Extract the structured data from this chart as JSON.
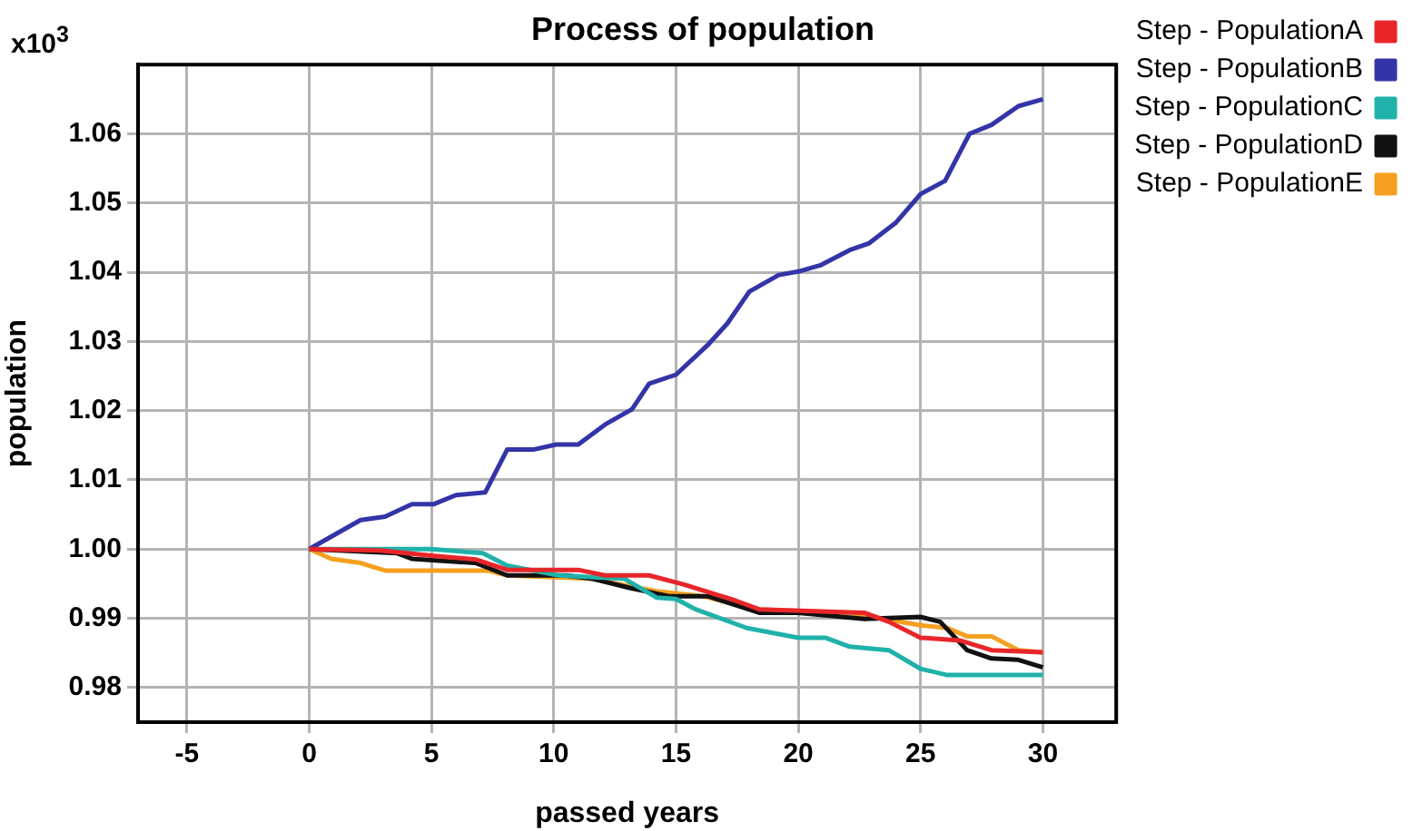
{
  "chart_data": {
    "type": "line",
    "title": "Process of population",
    "xlabel": "passed years",
    "ylabel": "population",
    "annotations": [
      "x10$^{3}$"
    ],
    "xlim": [
      -7,
      33
    ],
    "xticks": [
      -5,
      0,
      5,
      10,
      15,
      20,
      25,
      30
    ],
    "ylim": [
      0.975,
      1.07
    ],
    "yticks": [
      {
        "value": 0.98,
        "label": "0.98"
      },
      {
        "value": 0.99,
        "label": "0.99"
      },
      {
        "value": 1.0,
        "label": "1.00"
      },
      {
        "value": 1.01,
        "label": "1.01"
      },
      {
        "value": 1.02,
        "label": "1.02"
      },
      {
        "value": 1.03,
        "label": "1.03"
      },
      {
        "value": 1.04,
        "label": "1.04"
      },
      {
        "value": 1.05,
        "label": "1.05"
      },
      {
        "value": 1.06,
        "label": "1.06"
      }
    ],
    "grid": true,
    "legend": "top right",
    "marker": "none",
    "line_style": "solid",
    "series": [
      {
        "name": "Step - PopulationA",
        "color": "#e8262a",
        "x": [
          0,
          2.9,
          5.2,
          6.8,
          8.1,
          11.0,
          12.1,
          13.9,
          15.3,
          17.4,
          18.4,
          22.7,
          23.7,
          25.0,
          26.6,
          27.9,
          30
        ],
        "values": [
          1.0,
          0.9998,
          0.999,
          0.9985,
          0.997,
          0.997,
          0.9962,
          0.9962,
          0.9949,
          0.9926,
          0.9913,
          0.9908,
          0.9895,
          0.9872,
          0.9868,
          0.9854,
          0.9851
        ]
      },
      {
        "name": "Step - PopulationB",
        "color": "#3434a8",
        "x": [
          0,
          2.1,
          3.1,
          4.2,
          5.1,
          6.0,
          7.2,
          8.1,
          9.2,
          10.1,
          11.0,
          12.1,
          13.2,
          13.9,
          15.0,
          16.3,
          17.1,
          18.0,
          19.2,
          20.0,
          20.9,
          22.1,
          22.9,
          24.0,
          25.0,
          26.0,
          27.0,
          27.9,
          29.0,
          30
        ],
        "values": [
          1.0,
          1.0042,
          1.0047,
          1.0065,
          1.0065,
          1.0078,
          1.0082,
          1.0144,
          1.0144,
          1.0151,
          1.0151,
          1.018,
          1.0202,
          1.0239,
          1.0252,
          1.0295,
          1.0326,
          1.0372,
          1.0396,
          1.0401,
          1.041,
          1.0432,
          1.0442,
          1.0472,
          1.0513,
          1.0532,
          1.06,
          1.0613,
          1.064,
          1.065
        ]
      },
      {
        "name": "Step - PopulationC",
        "color": "#20b2aa",
        "x": [
          0,
          5.0,
          7.1,
          8.1,
          10.2,
          12.9,
          14.2,
          15.0,
          15.8,
          17.9,
          20.0,
          21.1,
          22.1,
          23.7,
          25.0,
          26.1,
          30
        ],
        "values": [
          1.0,
          1.0,
          0.9994,
          0.9976,
          0.9962,
          0.9957,
          0.993,
          0.9928,
          0.9913,
          0.9886,
          0.9872,
          0.9872,
          0.9859,
          0.9854,
          0.9827,
          0.9818,
          0.9818
        ]
      },
      {
        "name": "Step - PopulationD",
        "color": "#111111",
        "x": [
          0,
          3.6,
          4.2,
          6.8,
          8.1,
          10.5,
          11.6,
          13.1,
          14.7,
          16.3,
          18.4,
          20.0,
          22.7,
          25.0,
          25.8,
          26.9,
          27.9,
          29.0,
          30
        ],
        "values": [
          1.0,
          0.9994,
          0.9986,
          0.998,
          0.9962,
          0.9962,
          0.9957,
          0.9944,
          0.9932,
          0.9932,
          0.9908,
          0.9908,
          0.9899,
          0.9902,
          0.9895,
          0.9854,
          0.9842,
          0.984,
          0.9829
        ]
      },
      {
        "name": "Step - PopulationE",
        "color": "#f5a020",
        "x": [
          0,
          0.9,
          2.1,
          3.1,
          7.3,
          8.1,
          11.6,
          12.6,
          14.2,
          16.1,
          18.2,
          22.1,
          25.0,
          26.1,
          26.9,
          27.9,
          29.0,
          30
        ],
        "values": [
          1.0,
          0.9986,
          0.998,
          0.9969,
          0.9969,
          0.9962,
          0.9957,
          0.995,
          0.9939,
          0.9932,
          0.9913,
          0.9908,
          0.989,
          0.9886,
          0.9874,
          0.9874,
          0.9854,
          0.9851
        ]
      }
    ]
  }
}
